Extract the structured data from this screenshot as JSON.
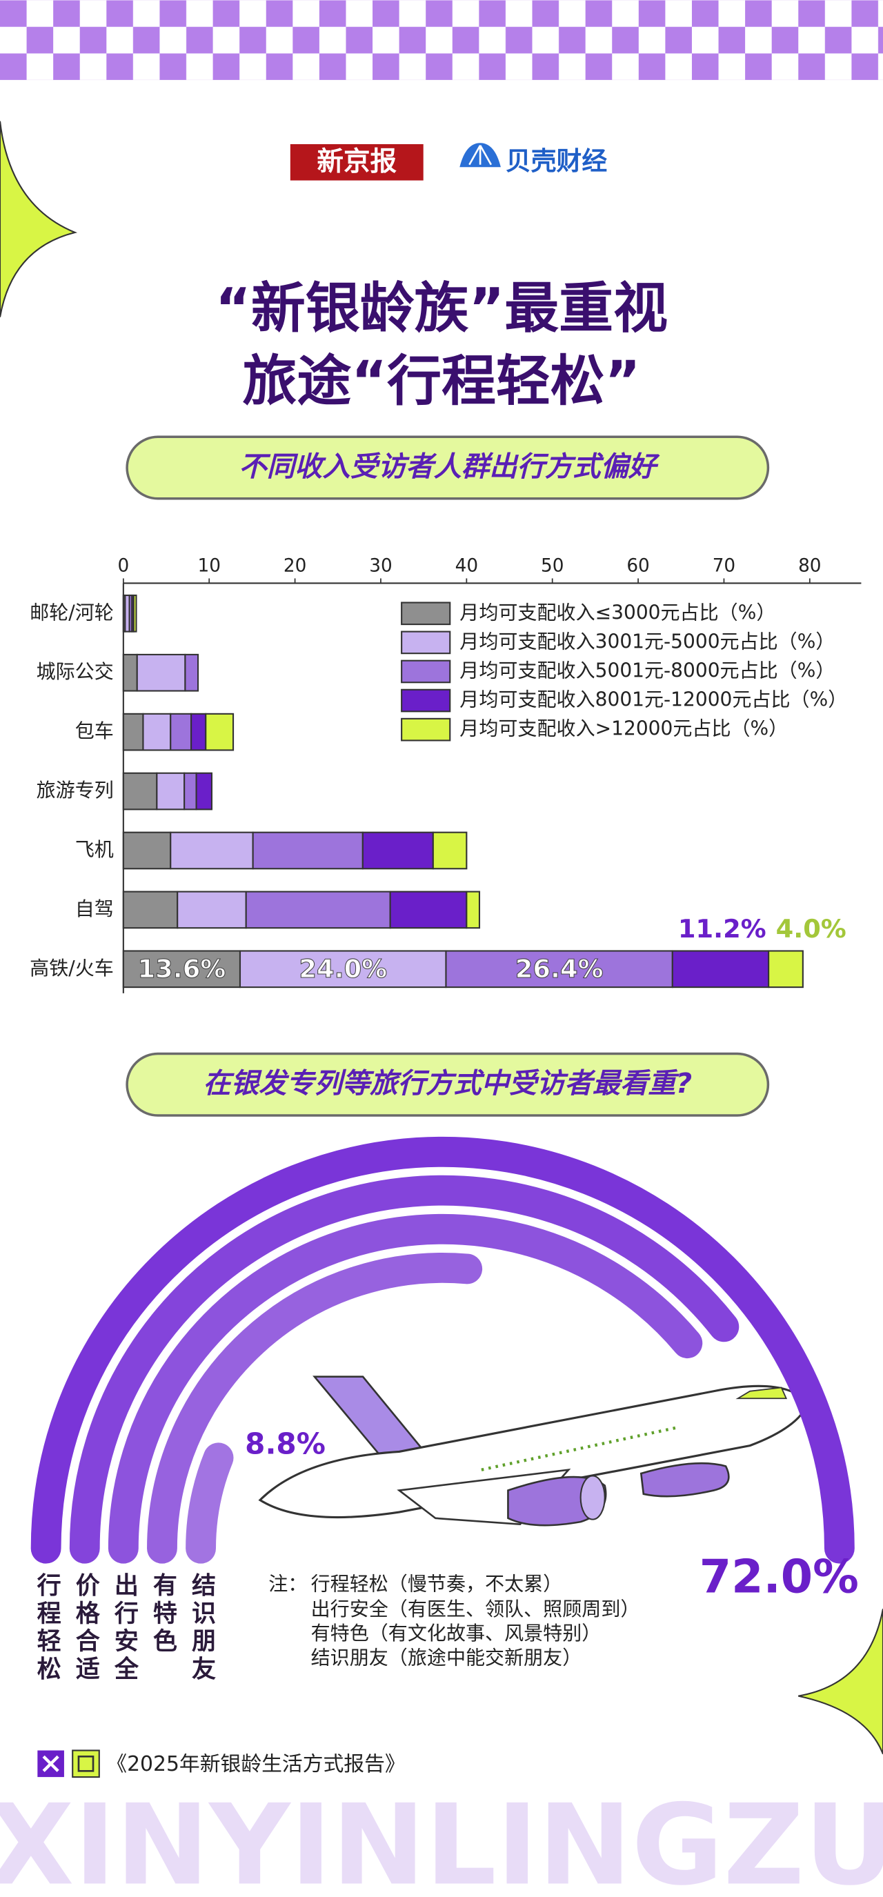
{
  "header": {
    "logos": [
      "新京报",
      "贝壳财经"
    ],
    "title": [
      "“新银龄族”最重视",
      "旅途“行程轻松”"
    ]
  },
  "chart_data": [
    {
      "type": "stacked_bar_h",
      "title": "不同收入受访者人群出行方式偏好",
      "categories": [
        "邮轮/河轮",
        "城际公交",
        "包车",
        "旅游专列",
        "飞机",
        "自驾",
        "高铁/火车"
      ],
      "xlim": [
        0,
        86
      ],
      "xticks": [
        0,
        10,
        20,
        30,
        40,
        50,
        60,
        70,
        80
      ],
      "series": [
        {
          "name": "月均可支配收入≤3000元占比（%）",
          "color": "#8f8f8f",
          "values": [
            0.2,
            1.6,
            2.3,
            3.9,
            5.5,
            6.3,
            13.6
          ],
          "value_labels": [
            null,
            null,
            null,
            null,
            null,
            null,
            "13.6%"
          ]
        },
        {
          "name": "月均可支配收入3001元-5000元占比（%）",
          "color": "#c7b2f0",
          "values": [
            0.5,
            5.6,
            3.2,
            3.2,
            9.6,
            8.0,
            24.0
          ],
          "value_labels": [
            null,
            null,
            null,
            null,
            null,
            null,
            "24.0%"
          ]
        },
        {
          "name": "月均可支配收入5001元-8000元占比（%）",
          "color": "#9d74dc",
          "values": [
            0.3,
            1.5,
            2.4,
            1.4,
            12.8,
            16.8,
            26.4
          ],
          "value_labels": [
            null,
            null,
            null,
            null,
            null,
            null,
            "26.4%"
          ]
        },
        {
          "name": "月均可支配收入8001元-12000元占比（%）",
          "color": "#6a1fc9",
          "values": [
            0.2,
            0,
            1.7,
            1.8,
            8.2,
            8.9,
            11.2
          ],
          "value_labels": [
            null,
            null,
            null,
            null,
            null,
            null,
            "11.2%"
          ]
        },
        {
          "name": "月均可支配收入>12000元占比（%）",
          "color": "#d8f545",
          "values": [
            0.3,
            0,
            3.2,
            0,
            3.9,
            1.5,
            4.0
          ],
          "value_labels": [
            null,
            null,
            null,
            null,
            null,
            null,
            "4.0%"
          ]
        }
      ]
    },
    {
      "type": "radial_bar",
      "title": "在银发专列等旅行方式中受访者最看重?",
      "categories": [
        "行程轻松",
        "价格合适",
        "出行安全",
        "有特色",
        "结识朋友"
      ],
      "values": [
        72.0,
        56.7,
        56.0,
        38.0,
        8.8
      ],
      "value_labels": [
        "72.0%",
        null,
        null,
        null,
        "8.8%"
      ],
      "colors": [
        "#7a35d8",
        "#8444db",
        "#8d53dd",
        "#9762df",
        "#a274e2"
      ],
      "rlim": [
        0,
        72
      ]
    }
  ],
  "notes": {
    "label": "注：",
    "lines": [
      "行程轻松（慢节奏，不太累）",
      "出行安全（有医生、领队、照顾周到）",
      "有特色（有文化故事、风景特别）",
      "结识朋友（旅途中能交新朋友）"
    ]
  },
  "source": "《2025年新银龄生活方式报告》",
  "footer": "XINYINLINGZU"
}
